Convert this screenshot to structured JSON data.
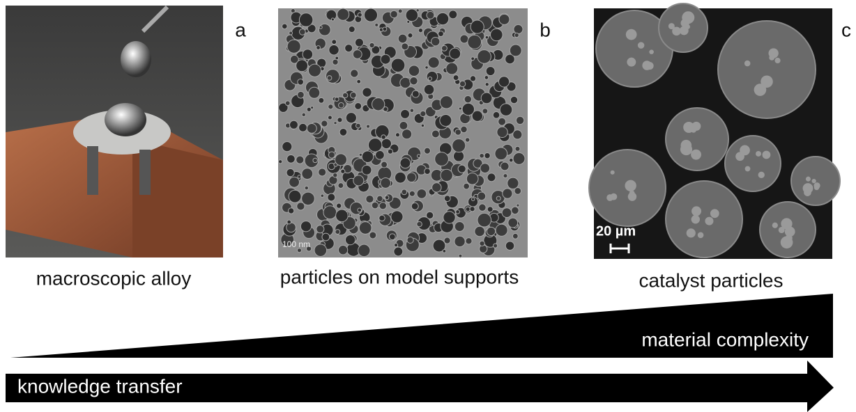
{
  "panels": [
    {
      "label": "a",
      "caption": "macroscopic alloy"
    },
    {
      "label": "b",
      "caption": "particles on model supports",
      "scale_bar": "100 nm"
    },
    {
      "label": "c",
      "caption": "catalyst particles",
      "scale_bar": "20 µm"
    }
  ],
  "wedge": {
    "label": "material complexity"
  },
  "arrow": {
    "label": "knowledge transfer"
  }
}
